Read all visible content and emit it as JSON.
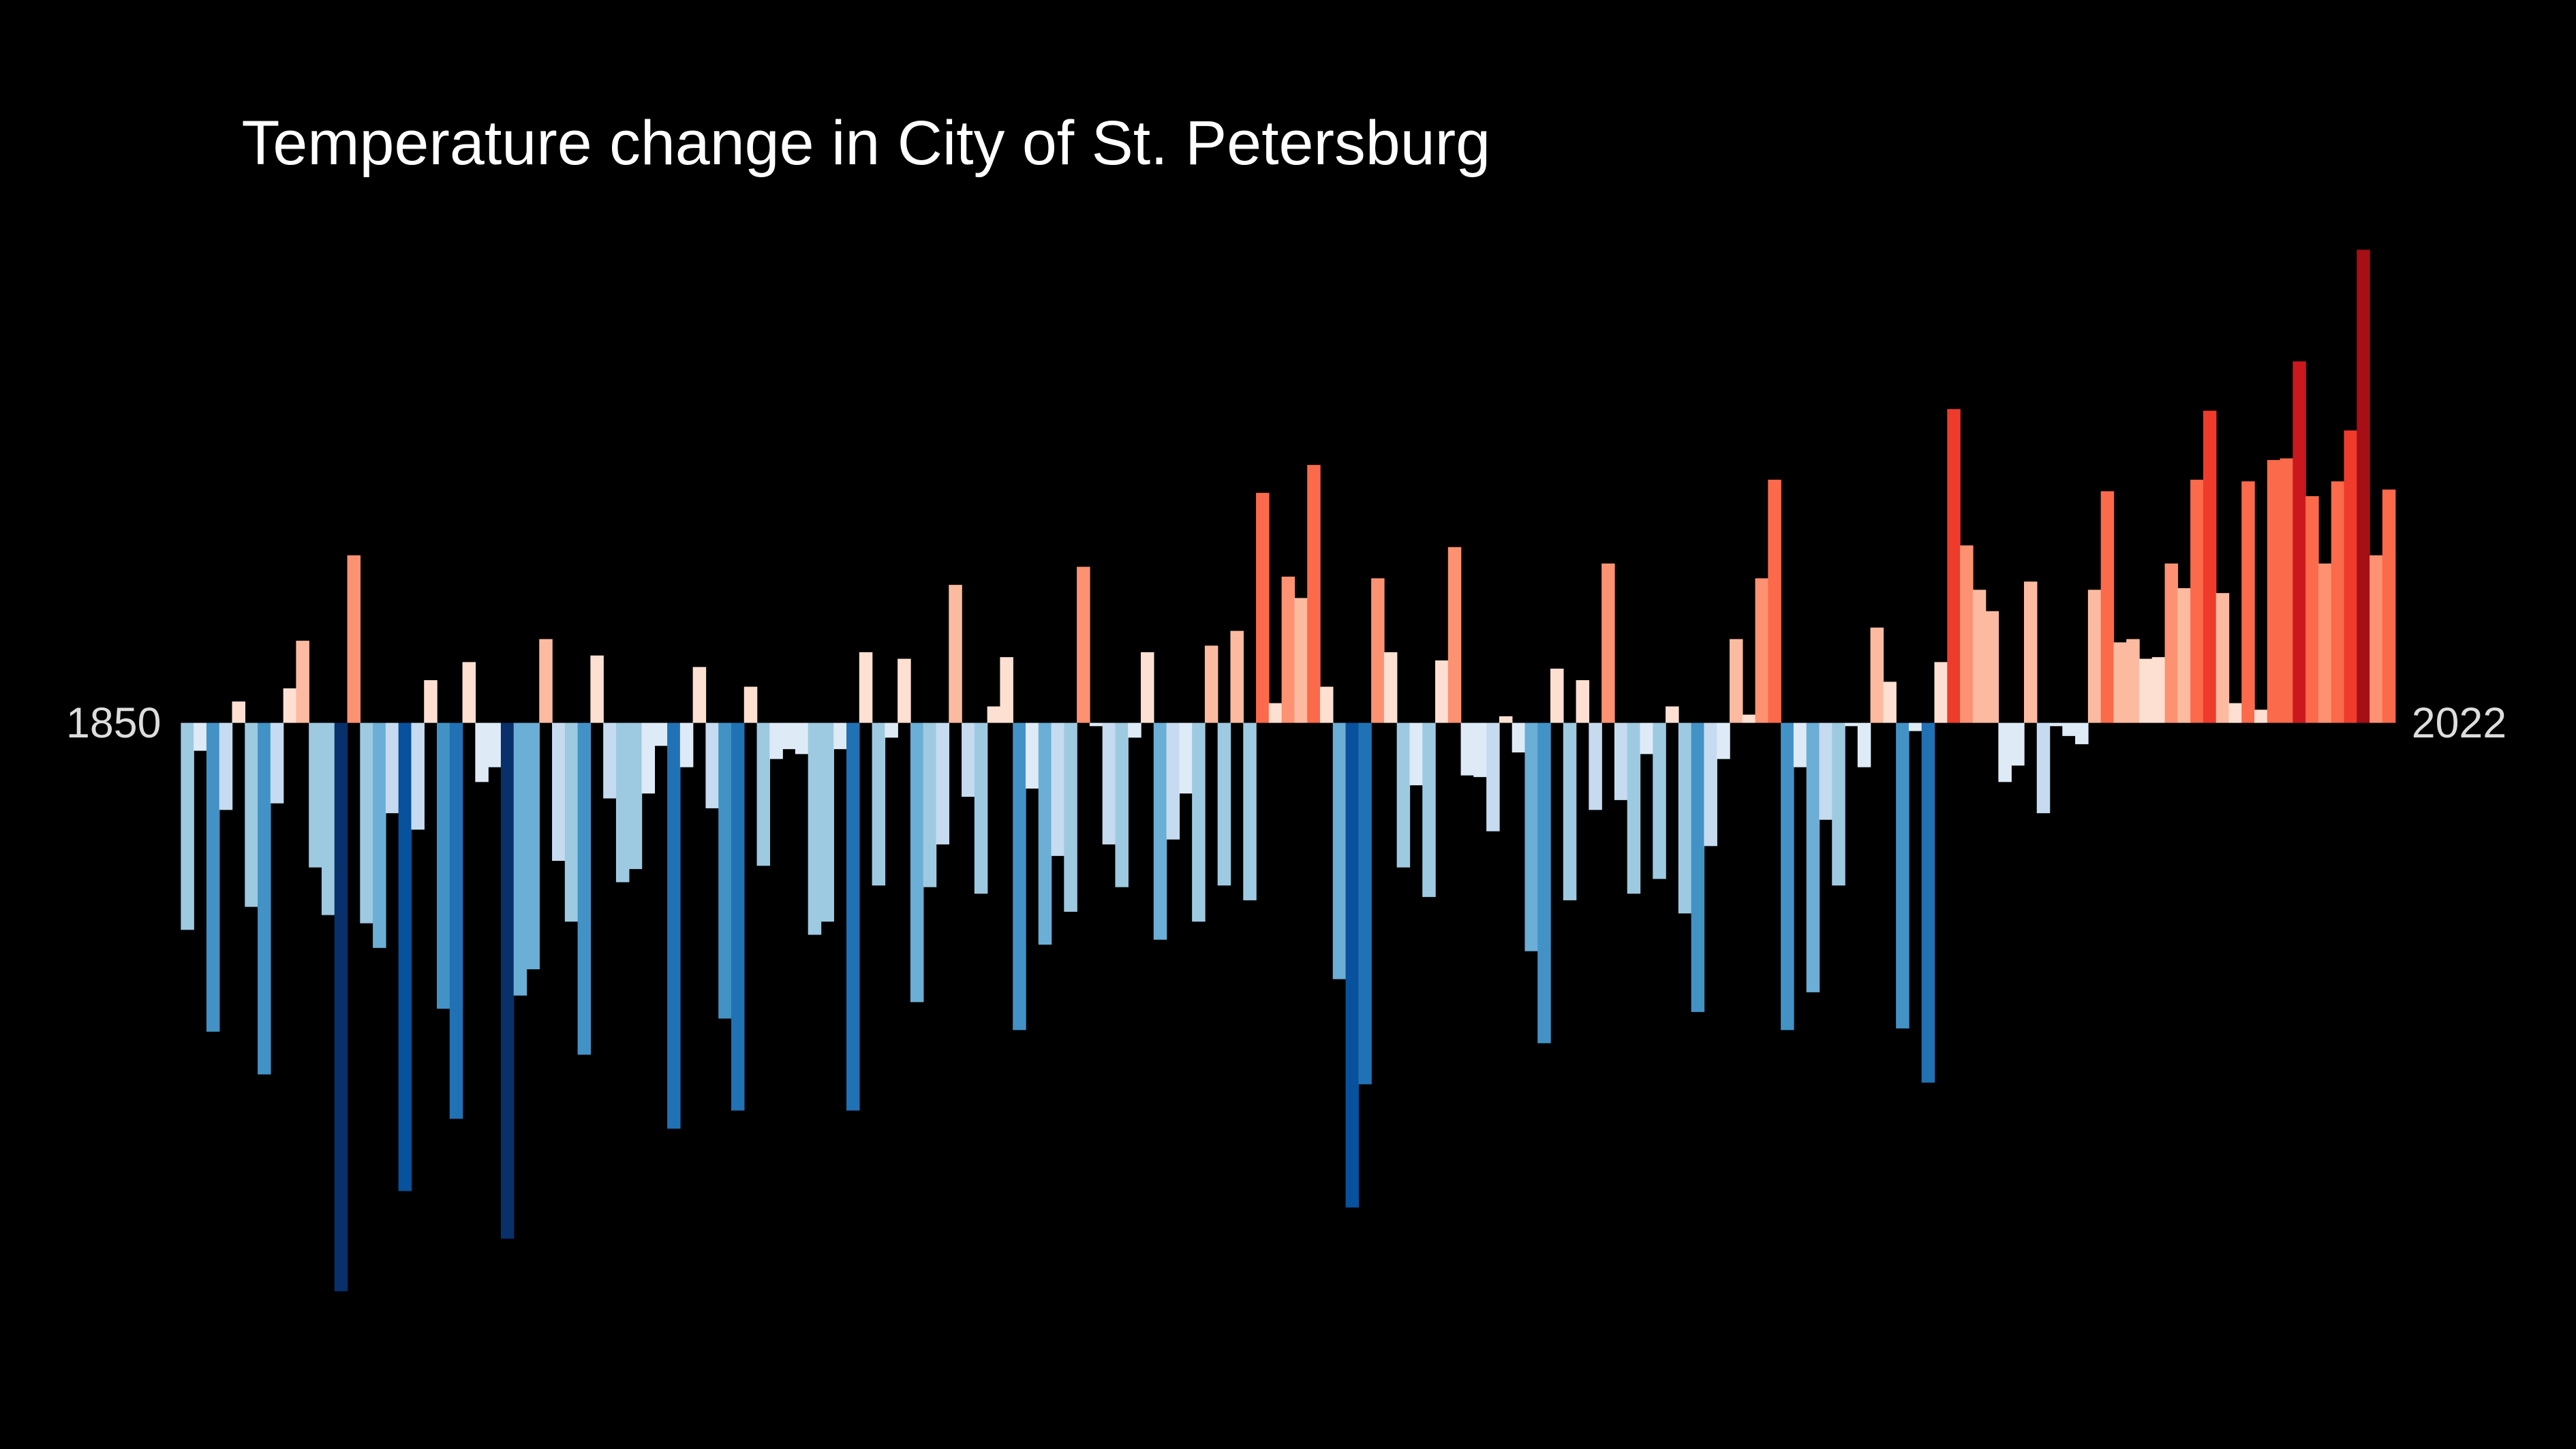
{
  "chart_data": {
    "type": "bar",
    "title": "Temperature change in City of St. Petersburg",
    "categories": [
      "1850",
      null,
      null,
      null,
      null,
      null,
      null,
      null,
      null,
      null,
      null,
      null,
      null,
      null,
      null,
      null,
      null,
      null,
      null,
      null,
      null,
      null,
      null,
      null,
      null,
      null,
      null,
      null,
      null,
      null,
      null,
      null,
      null,
      null,
      null,
      null,
      null,
      null,
      null,
      null,
      null,
      null,
      null,
      null,
      null,
      null,
      null,
      null,
      null,
      null,
      null,
      null,
      null,
      null,
      null,
      null,
      null,
      null,
      null,
      null,
      null,
      null,
      null,
      null,
      null,
      null,
      null,
      null,
      null,
      null,
      null,
      null,
      null,
      null,
      null,
      null,
      null,
      null,
      null,
      null,
      null,
      null,
      null,
      null,
      null,
      null,
      null,
      null,
      null,
      null,
      null,
      null,
      null,
      null,
      null,
      null,
      null,
      null,
      null,
      null,
      null,
      null,
      null,
      null,
      null,
      null,
      null,
      null,
      null,
      null,
      null,
      null,
      null,
      null,
      null,
      null,
      null,
      null,
      null,
      null,
      null,
      null,
      null,
      null,
      null,
      null,
      null,
      null,
      null,
      null,
      null,
      null,
      null,
      null,
      null,
      null,
      null,
      null,
      null,
      null,
      null,
      null,
      null,
      null,
      null,
      null,
      null,
      null,
      null,
      null,
      null,
      null,
      null,
      null,
      null,
      null,
      null,
      null,
      null,
      null,
      null,
      null,
      null,
      null,
      null,
      null,
      null,
      null,
      null,
      null,
      null,
      null,
      "2022"
    ],
    "values": [
      -126,
      -17,
      -188,
      -53,
      13,
      -112,
      -214,
      -49,
      21,
      50,
      -88,
      -117,
      -346,
      102,
      -122,
      -137,
      -55,
      -285,
      -65,
      26,
      -174,
      -241,
      37,
      -36,
      -27,
      -314,
      -166,
      -150,
      51,
      -84,
      -121,
      -202,
      41,
      -46,
      -97,
      -89,
      -43,
      -14,
      -247,
      -27,
      34,
      -52,
      -180,
      -236,
      22,
      -87,
      -22,
      -16,
      -19,
      -129,
      -121,
      -16,
      -236,
      43,
      -99,
      -9,
      39,
      -170,
      -100,
      -74,
      84,
      -45,
      -104,
      10,
      40,
      -187,
      -40,
      -135,
      -81,
      -115,
      95,
      -2,
      -74,
      -100,
      -9,
      43,
      -132,
      -71,
      -43,
      -121,
      47,
      -99,
      56,
      -108,
      140,
      12,
      89,
      76,
      157,
      22,
      -156,
      -295,
      -220,
      88,
      43,
      -88,
      -38,
      -106,
      38,
      107,
      -32,
      -33,
      -66,
      4,
      -18,
      -139,
      -195,
      33,
      -108,
      26,
      -53,
      97,
      -47,
      -104,
      -19,
      -95,
      10,
      -116,
      -176,
      -75,
      -22,
      51,
      5,
      88,
      148,
      -187,
      -27,
      -164,
      -59,
      -99,
      -2,
      -27,
      58,
      25,
      -186,
      -5,
      -219,
      37,
      191,
      108,
      81,
      68,
      -36,
      -26,
      86,
      -55,
      -2,
      -8,
      -13,
      81,
      141,
      49,
      51,
      39,
      40,
      97,
      82,
      148,
      190,
      79,
      12,
      147,
      8,
      160,
      161,
      220,
      138,
      97,
      147,
      178,
      288,
      102,
      142
    ],
    "colormap": [
      "#08306b",
      "#08519c",
      "#2171b5",
      "#4292c6",
      "#6baed6",
      "#9ecae1",
      "#c6dbef",
      "#deebf7",
      "#fee0d2",
      "#fcbba1",
      "#fc9272",
      "#fb6a4a",
      "#ef3b2c",
      "#cb181d",
      "#a50f15",
      "#67000d"
    ]
  }
}
